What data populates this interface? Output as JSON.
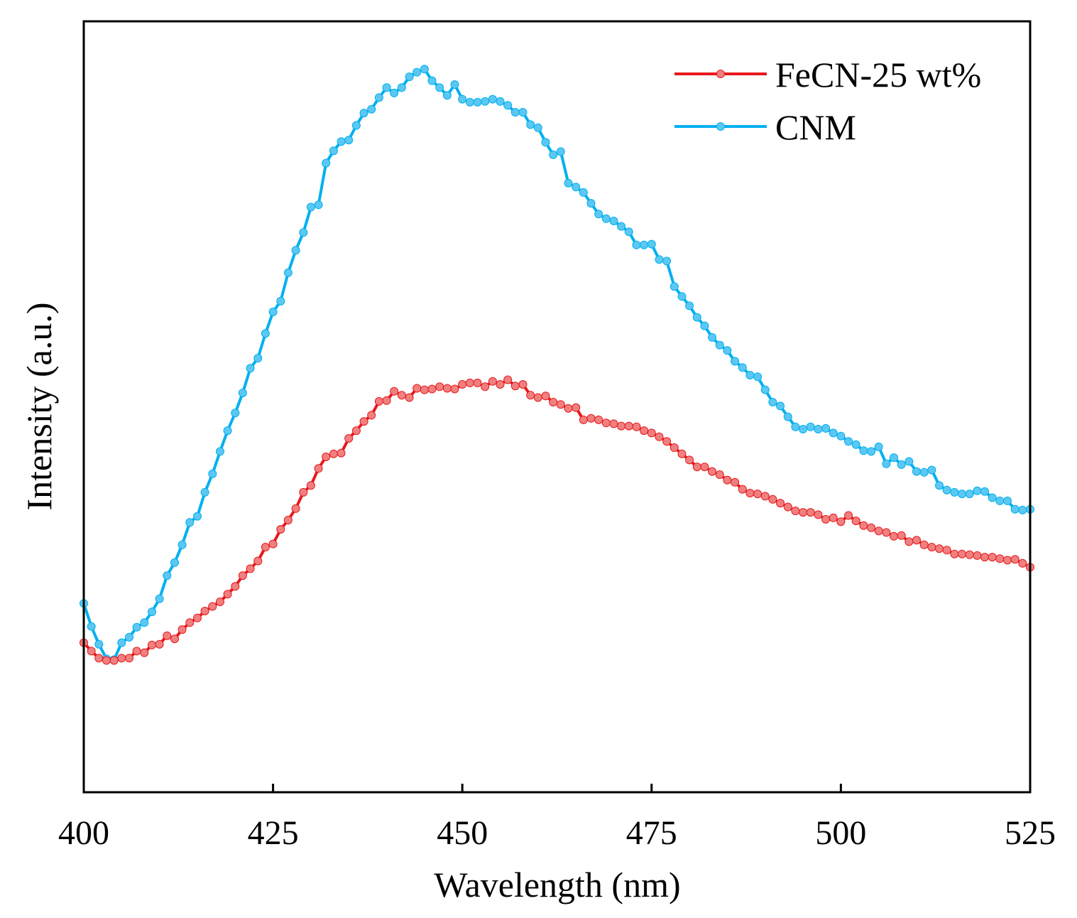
{
  "chart_data": {
    "type": "line",
    "title": "",
    "xlabel": "Wavelength (nm)",
    "ylabel": "Intensity (a.u.)",
    "xlim": [
      400,
      525
    ],
    "ylim": [
      0,
      100
    ],
    "xticks": [
      400,
      425,
      450,
      475,
      500,
      525
    ],
    "xtick_labels": [
      "400",
      "425",
      "450",
      "475",
      "500",
      "525"
    ],
    "yticks": [],
    "grid": false,
    "legend_position": "top-right",
    "x": [
      400,
      401,
      402,
      403,
      404,
      405,
      406,
      407,
      408,
      409,
      410,
      411,
      412,
      413,
      414,
      415,
      416,
      417,
      418,
      419,
      420,
      421,
      422,
      423,
      424,
      425,
      426,
      427,
      428,
      429,
      430,
      431,
      432,
      433,
      434,
      435,
      436,
      437,
      438,
      439,
      440,
      441,
      442,
      443,
      444,
      445,
      446,
      447,
      448,
      449,
      450,
      451,
      452,
      453,
      454,
      455,
      456,
      457,
      458,
      459,
      460,
      461,
      462,
      463,
      464,
      465,
      466,
      467,
      468,
      469,
      470,
      471,
      472,
      473,
      474,
      475,
      476,
      477,
      478,
      479,
      480,
      481,
      482,
      483,
      484,
      485,
      486,
      487,
      488,
      489,
      490,
      491,
      492,
      493,
      494,
      495,
      496,
      497,
      498,
      499,
      500,
      501,
      502,
      503,
      504,
      505,
      506,
      507,
      508,
      509,
      510,
      511,
      512,
      513,
      514,
      515,
      516,
      517,
      518,
      519,
      520,
      521,
      522,
      523,
      524,
      525
    ],
    "series": [
      {
        "name": "FeCN-25 wt%",
        "color": "#e8191c",
        "marker_color": "#f08080",
        "values": [
          19.4,
          18.3,
          17.4,
          17.1,
          17.1,
          17.4,
          17.4,
          18.3,
          18.1,
          19.1,
          19.2,
          20.3,
          19.9,
          21.1,
          22.0,
          22.6,
          23.5,
          24.1,
          24.7,
          25.7,
          26.7,
          28.1,
          29.0,
          30.0,
          31.8,
          32.2,
          34.1,
          35.3,
          36.8,
          38.9,
          39.8,
          42.0,
          43.5,
          43.9,
          44.0,
          45.9,
          46.9,
          48.1,
          48.9,
          50.7,
          50.8,
          52.0,
          51.5,
          51.2,
          52.4,
          52.2,
          52.3,
          52.6,
          52.4,
          52.3,
          52.9,
          53.1,
          53.1,
          52.6,
          53.3,
          52.9,
          53.5,
          52.7,
          52.9,
          51.5,
          51.2,
          51.4,
          50.6,
          50.3,
          49.8,
          49.9,
          48.3,
          48.5,
          48.3,
          47.9,
          47.8,
          47.5,
          47.5,
          47.4,
          46.9,
          46.6,
          46.1,
          45.5,
          44.7,
          43.9,
          43.1,
          42.2,
          42.2,
          41.6,
          41.2,
          40.5,
          40.2,
          39.3,
          38.8,
          38.7,
          38.4,
          38.0,
          37.5,
          37.0,
          36.5,
          36.3,
          36.3,
          36.0,
          35.4,
          35.6,
          35.1,
          35.9,
          35.2,
          34.6,
          34.3,
          33.9,
          33.7,
          33.2,
          33.3,
          32.5,
          32.7,
          32.1,
          31.8,
          31.6,
          31.4,
          30.9,
          30.9,
          30.8,
          30.7,
          30.5,
          30.5,
          30.3,
          30.1,
          30.2,
          29.7,
          29.2
        ]
      },
      {
        "name": "CNM",
        "color": "#00b0f0",
        "marker_color": "#5cc8f2",
        "values": [
          24.5,
          21.5,
          19.2,
          17.3,
          17.2,
          19.4,
          20.1,
          21.4,
          22.0,
          23.4,
          25.1,
          28.1,
          29.8,
          32.1,
          35.0,
          35.8,
          38.9,
          41.3,
          44.2,
          46.9,
          49.2,
          51.8,
          55.0,
          56.3,
          59.5,
          62.3,
          63.7,
          67.4,
          70.3,
          72.6,
          75.9,
          76.2,
          81.6,
          83.2,
          84.4,
          84.6,
          86.5,
          88.1,
          88.6,
          90.1,
          91.4,
          90.7,
          91.4,
          92.8,
          93.4,
          93.8,
          92.3,
          91.4,
          90.4,
          91.8,
          89.9,
          89.5,
          89.5,
          89.6,
          89.9,
          89.6,
          89.1,
          88.2,
          88.2,
          86.6,
          86.2,
          84.3,
          82.7,
          83.1,
          79.0,
          78.5,
          77.8,
          76.4,
          75.0,
          74.4,
          74.1,
          73.4,
          72.7,
          71.0,
          71.0,
          71.1,
          69.1,
          68.9,
          65.6,
          64.3,
          63.1,
          61.6,
          60.5,
          59.0,
          58.0,
          57.3,
          55.9,
          55.1,
          54.1,
          53.9,
          52.2,
          50.6,
          50.1,
          48.7,
          47.4,
          47.1,
          47.4,
          47.1,
          47.2,
          46.6,
          46.2,
          45.5,
          45.1,
          44.3,
          44.2,
          44.8,
          42.6,
          43.4,
          42.5,
          42.9,
          41.6,
          41.5,
          41.8,
          39.8,
          39.2,
          38.9,
          38.7,
          38.7,
          39.1,
          39.0,
          38.2,
          37.8,
          37.8,
          36.7,
          36.6,
          36.7
        ]
      }
    ]
  }
}
